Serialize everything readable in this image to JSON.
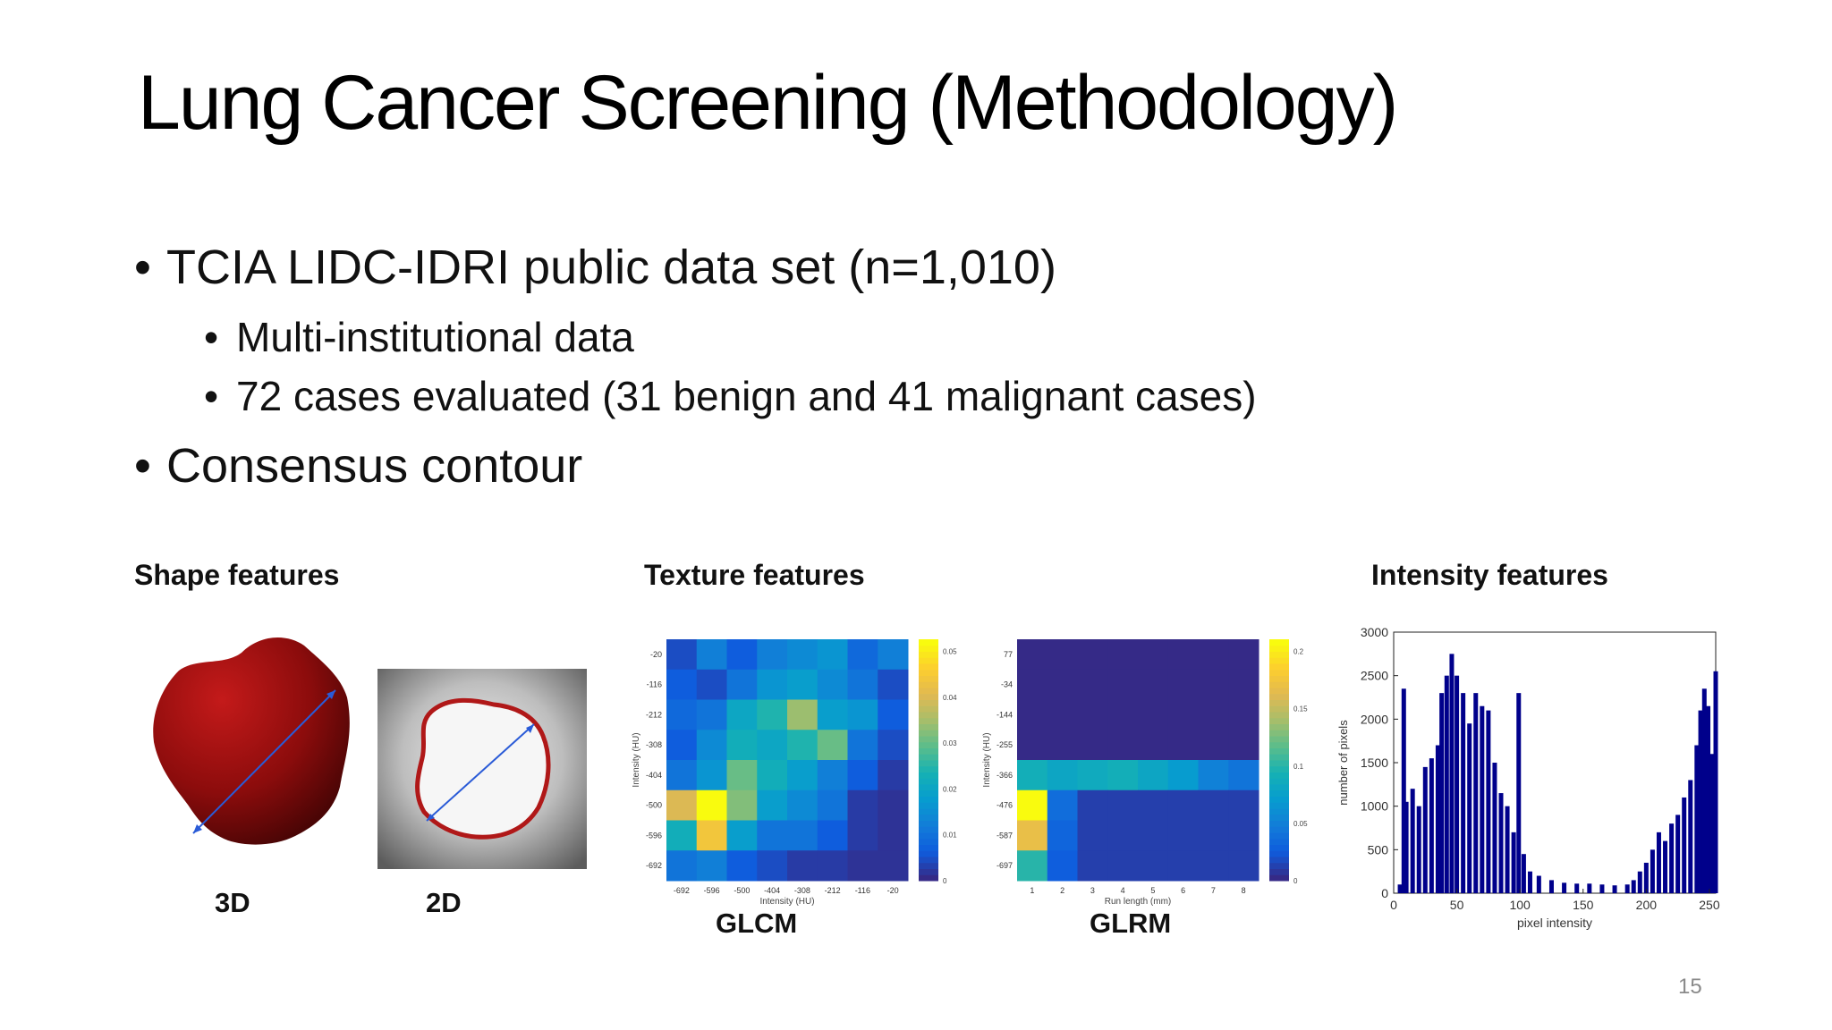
{
  "slide": {
    "title": "Lung Cancer Screening (Methodology)",
    "page_number": "15"
  },
  "bullets": [
    {
      "text": "TCIA LIDC-IDRI public data set (n=1,010)",
      "level": 1
    },
    {
      "text": "Multi-institutional data",
      "level": 2
    },
    {
      "text": "72 cases evaluated (31 benign and 41 malignant cases)",
      "level": 2
    },
    {
      "text": "Consensus contour",
      "level": 1
    }
  ],
  "sections": {
    "shape": "Shape features",
    "texture": "Texture features",
    "intensity": "Intensity features"
  },
  "figure_labels": {
    "shape_3d": "3D",
    "shape_2d": "2D",
    "glcm": "GLCM",
    "glrm": "GLRM"
  },
  "colors": {
    "contour": "#b01818",
    "shape_body": "#8c0c0c",
    "diameter_arrow": "#2a5bd7",
    "histogram_bar": "#00008b"
  },
  "chart_data": [
    {
      "type": "heatmap",
      "name": "GLCM",
      "title": "",
      "xlabel": "Intensity (HU)",
      "ylabel": "Intensity (HU)",
      "x_ticks": [
        "-692",
        "-596",
        "-500",
        "-404",
        "-308",
        "-212",
        "-116",
        "-20"
      ],
      "y_ticks": [
        "-20",
        "-116",
        "-212",
        "-308",
        "-404",
        "-500",
        "-596",
        "-692"
      ],
      "colorbar_ticks": [
        "0",
        "0.01",
        "0.02",
        "0.03",
        "0.04",
        "0.05"
      ],
      "matrix": [
        [
          0.004,
          0.012,
          0.006,
          0.012,
          0.014,
          0.016,
          0.008,
          0.012
        ],
        [
          0.006,
          0.004,
          0.01,
          0.016,
          0.018,
          0.014,
          0.01,
          0.004
        ],
        [
          0.008,
          0.01,
          0.02,
          0.024,
          0.034,
          0.018,
          0.016,
          0.006
        ],
        [
          0.006,
          0.014,
          0.022,
          0.02,
          0.024,
          0.03,
          0.01,
          0.004
        ],
        [
          0.01,
          0.016,
          0.03,
          0.022,
          0.018,
          0.012,
          0.006,
          0.002
        ],
        [
          0.04,
          0.052,
          0.032,
          0.018,
          0.014,
          0.01,
          0.002,
          0.001
        ],
        [
          0.022,
          0.044,
          0.018,
          0.01,
          0.01,
          0.006,
          0.002,
          0.001
        ],
        [
          0.01,
          0.012,
          0.006,
          0.004,
          0.002,
          0.002,
          0.001,
          0.001
        ]
      ]
    },
    {
      "type": "heatmap",
      "name": "GLRM",
      "title": "",
      "xlabel": "Run length (mm)",
      "ylabel": "Intensity (HU)",
      "x_ticks": [
        "1",
        "2",
        "3",
        "4",
        "5",
        "6",
        "7",
        "8"
      ],
      "y_ticks": [
        "77",
        "-34",
        "-144",
        "-255",
        "-366",
        "-476",
        "-587",
        "-697"
      ],
      "colorbar_ticks": [
        "0",
        "0.05",
        "0.1",
        "0.15",
        "0.2"
      ],
      "matrix": [
        [
          0.0,
          0.0,
          0.0,
          0.0,
          0.0,
          0.0,
          0.0,
          0.0
        ],
        [
          0.0,
          0.0,
          0.0,
          0.0,
          0.0,
          0.0,
          0.0,
          0.0
        ],
        [
          0.0,
          0.0,
          0.0,
          0.0,
          0.0,
          0.0,
          0.0,
          0.0
        ],
        [
          0.0,
          0.0,
          0.0,
          0.0,
          0.0,
          0.0,
          0.0,
          0.0
        ],
        [
          0.09,
          0.08,
          0.085,
          0.09,
          0.08,
          0.07,
          0.05,
          0.04
        ],
        [
          0.21,
          0.035,
          0.01,
          0.01,
          0.01,
          0.01,
          0.01,
          0.01
        ],
        [
          0.17,
          0.03,
          0.01,
          0.01,
          0.01,
          0.01,
          0.01,
          0.01
        ],
        [
          0.1,
          0.025,
          0.01,
          0.01,
          0.01,
          0.01,
          0.01,
          0.01
        ]
      ]
    },
    {
      "type": "bar",
      "name": "Intensity histogram",
      "title": "",
      "xlabel": "pixel intensity",
      "ylabel": "number of pixels",
      "xlim": [
        0,
        255
      ],
      "ylim": [
        0,
        3000
      ],
      "x_ticks": [
        "0",
        "50",
        "100",
        "150",
        "200",
        "250"
      ],
      "y_ticks": [
        "0",
        "500",
        "1000",
        "1500",
        "2000",
        "2500",
        "3000"
      ],
      "grid": false,
      "bins": [
        {
          "x": 5,
          "y": 100
        },
        {
          "x": 8,
          "y": 2350
        },
        {
          "x": 10,
          "y": 1050
        },
        {
          "x": 15,
          "y": 1200
        },
        {
          "x": 20,
          "y": 1000
        },
        {
          "x": 25,
          "y": 1450
        },
        {
          "x": 30,
          "y": 1550
        },
        {
          "x": 35,
          "y": 1700
        },
        {
          "x": 38,
          "y": 2300
        },
        {
          "x": 42,
          "y": 2500
        },
        {
          "x": 46,
          "y": 2750
        },
        {
          "x": 50,
          "y": 2500
        },
        {
          "x": 55,
          "y": 2300
        },
        {
          "x": 60,
          "y": 1950
        },
        {
          "x": 65,
          "y": 2300
        },
        {
          "x": 70,
          "y": 2150
        },
        {
          "x": 75,
          "y": 2100
        },
        {
          "x": 80,
          "y": 1500
        },
        {
          "x": 85,
          "y": 1150
        },
        {
          "x": 90,
          "y": 1000
        },
        {
          "x": 95,
          "y": 700
        },
        {
          "x": 99,
          "y": 2300
        },
        {
          "x": 103,
          "y": 450
        },
        {
          "x": 108,
          "y": 250
        },
        {
          "x": 115,
          "y": 200
        },
        {
          "x": 125,
          "y": 150
        },
        {
          "x": 135,
          "y": 120
        },
        {
          "x": 145,
          "y": 110
        },
        {
          "x": 155,
          "y": 110
        },
        {
          "x": 165,
          "y": 100
        },
        {
          "x": 175,
          "y": 90
        },
        {
          "x": 185,
          "y": 100
        },
        {
          "x": 190,
          "y": 150
        },
        {
          "x": 195,
          "y": 250
        },
        {
          "x": 200,
          "y": 350
        },
        {
          "x": 205,
          "y": 500
        },
        {
          "x": 210,
          "y": 700
        },
        {
          "x": 215,
          "y": 600
        },
        {
          "x": 220,
          "y": 800
        },
        {
          "x": 225,
          "y": 900
        },
        {
          "x": 230,
          "y": 1100
        },
        {
          "x": 235,
          "y": 1300
        },
        {
          "x": 240,
          "y": 1700
        },
        {
          "x": 243,
          "y": 2100
        },
        {
          "x": 246,
          "y": 2350
        },
        {
          "x": 249,
          "y": 2150
        },
        {
          "x": 252,
          "y": 1600
        },
        {
          "x": 255,
          "y": 2550
        }
      ]
    }
  ]
}
